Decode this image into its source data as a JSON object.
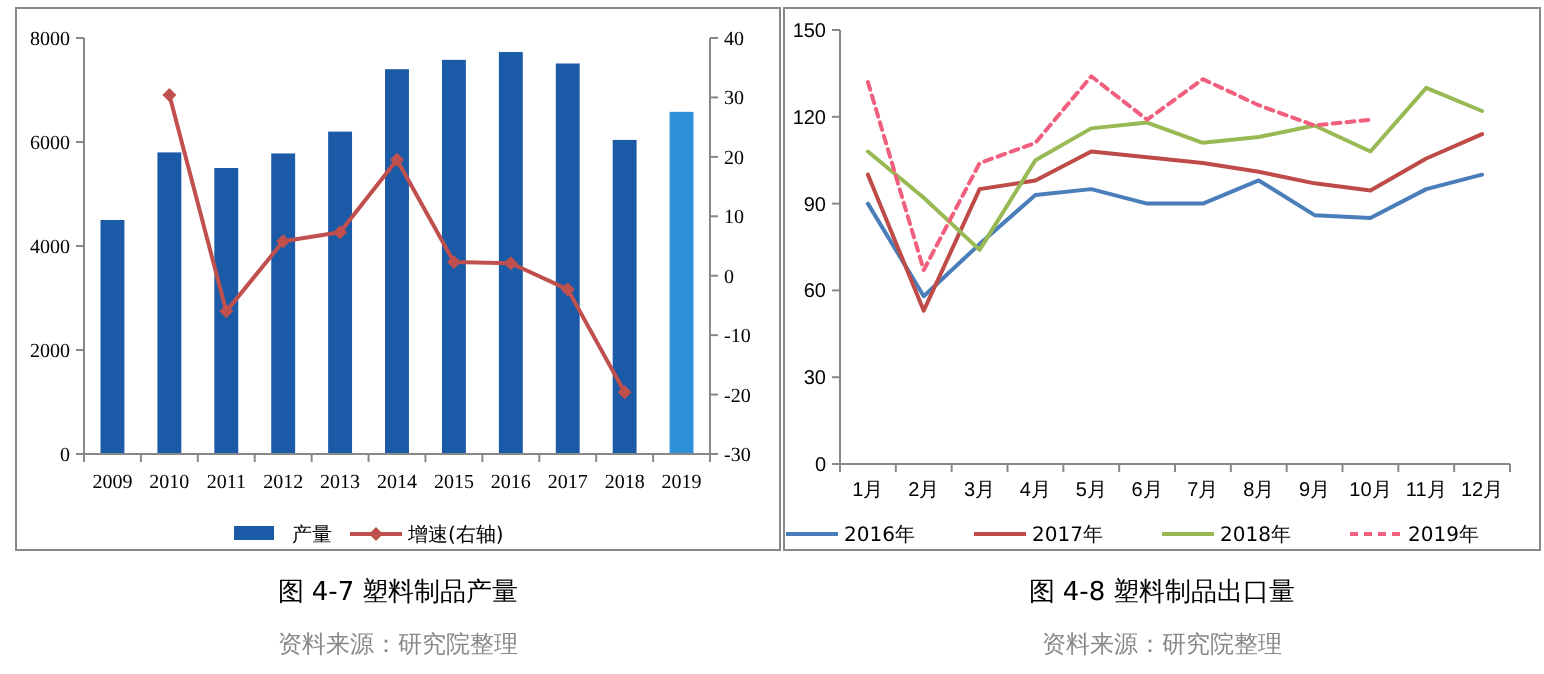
{
  "chart_data": [
    {
      "type": "bar",
      "title": "图 4-7  塑料制品产量",
      "annotations": [
        "资料来源：研究院整理"
      ],
      "categories": [
        "2009",
        "2010",
        "2011",
        "2012",
        "2013",
        "2014",
        "2015",
        "2016",
        "2017",
        "2018",
        "2019"
      ],
      "series": [
        {
          "name": "产量",
          "type": "bar",
          "color": "#1a5aa6",
          "colors": [
            "#1a5aa6",
            "#1a5aa6",
            "#1a5aa6",
            "#1a5aa6",
            "#1a5aa6",
            "#1a5aa6",
            "#1a5aa6",
            "#1a5aa6",
            "#1a5aa6",
            "#1a5aa6",
            "#2f8fd8"
          ],
          "values": [
            4500,
            5800,
            5500,
            5780,
            6200,
            7400,
            7580,
            7730,
            7510,
            6040,
            6580
          ]
        },
        {
          "name": "增速(右轴)",
          "type": "line",
          "axis": "y2",
          "color": "#c0504d",
          "marker": "diamond",
          "values": [
            null,
            30.4,
            -6,
            5.8,
            7.3,
            19.5,
            2.3,
            2.1,
            -2.3,
            -19.6,
            null
          ]
        }
      ],
      "ylim": [
        0,
        8000
      ],
      "yticks": [
        0,
        2000,
        4000,
        6000,
        8000
      ],
      "y2lim": [
        -30,
        40
      ],
      "y2ticks": [
        -30,
        -20,
        -10,
        0,
        10,
        20,
        30,
        40
      ],
      "legend": "bottom"
    },
    {
      "type": "line",
      "title": "图 4-8  塑料制品出口量",
      "annotations": [
        "资料来源：研究院整理"
      ],
      "categories": [
        "1月",
        "2月",
        "3月",
        "4月",
        "5月",
        "6月",
        "7月",
        "8月",
        "9月",
        "10月",
        "11月",
        "12月"
      ],
      "series": [
        {
          "name": "2016年",
          "color": "#4a7ebb",
          "values": [
            90,
            58,
            76,
            93,
            95,
            90,
            90,
            98,
            86,
            85,
            95,
            100
          ]
        },
        {
          "name": "2017年",
          "color": "#be4b48",
          "values": [
            100,
            53,
            95,
            98,
            108,
            106,
            104,
            101,
            97,
            94.5,
            105.6,
            114
          ]
        },
        {
          "name": "2018年",
          "color": "#98b954",
          "values": [
            108,
            92,
            74,
            105,
            116,
            118,
            111,
            113,
            117,
            108,
            130,
            122
          ]
        },
        {
          "name": "2019年",
          "color": "#f0607e",
          "line_style": "dashed",
          "values": [
            132,
            67,
            104,
            111,
            134,
            119,
            133,
            124,
            117,
            119,
            null,
            null
          ]
        }
      ],
      "ylim": [
        0,
        150
      ],
      "yticks": [
        0,
        30,
        60,
        90,
        120,
        150
      ],
      "legend": "bottom"
    }
  ]
}
